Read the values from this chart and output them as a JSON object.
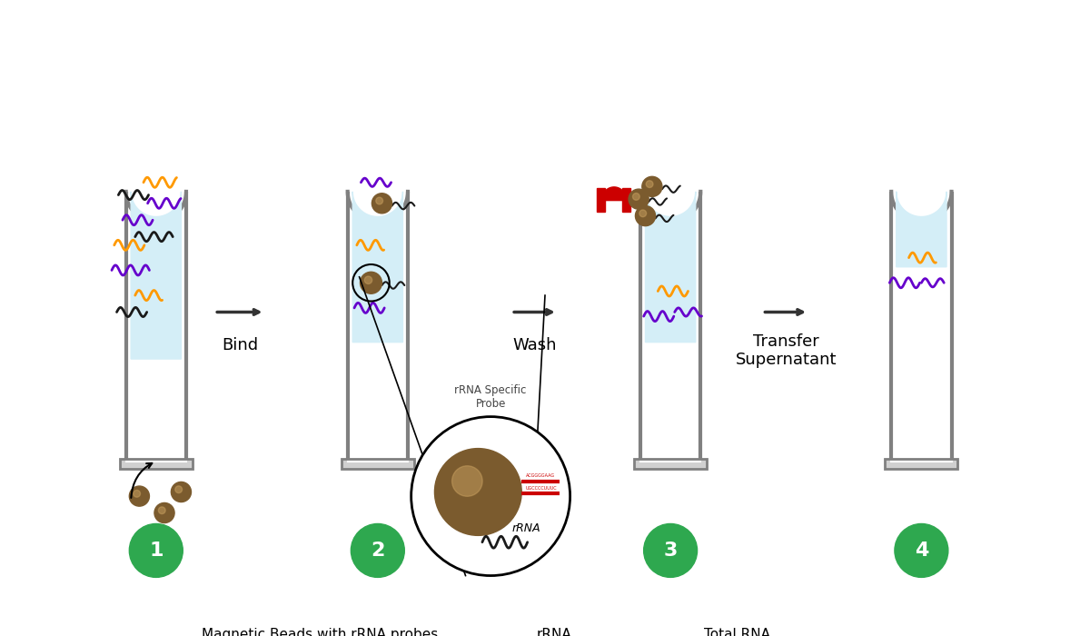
{
  "background_color": "#ffffff",
  "tube_color": "#808080",
  "tube_inner_color": "#ffffff",
  "liquid_color": "#d4eef7",
  "bead_color": "#7B5B2E",
  "bead_color_dark": "#5a3e1b",
  "rna_color_black": "#1a1a1a",
  "rna_color_purple": "#6600cc",
  "rna_color_orange": "#ff9900",
  "green_circle_color": "#2ea84f",
  "magnet_color": "#cc0000",
  "arrow_color": "#333333",
  "step_labels": [
    "Bind",
    "Wash",
    "Transfer\nSupernatant"
  ],
  "step_numbers": [
    "1",
    "2",
    "3",
    "4"
  ],
  "probe_label": "rRNA Specific\nProbe",
  "rrna_label": "rRNA",
  "legend_bead_label": "Magnetic Beads with rRNA probes",
  "legend_rrna_label": "rRNA",
  "legend_rna_label": "Total RNA",
  "title_fontsize": 12,
  "label_fontsize": 13,
  "legend_fontsize": 11
}
